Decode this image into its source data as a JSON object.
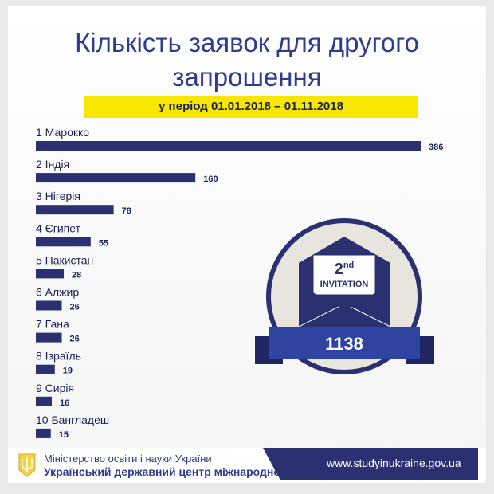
{
  "chart_data": {
    "type": "bar",
    "orientation": "horizontal",
    "title": "Кількість заявок для другого запрошення",
    "subtitle": "у період 01.01.2018 –  01.11.2018",
    "categories": [
      "1 Марокко",
      "2 Індія",
      "3 Нігерія",
      "4 Єгипет",
      "5 Пакистан",
      "6 Алжир",
      "7 Гана",
      "8 Ізраїль",
      "9 Сирія",
      "10 Бангладеш"
    ],
    "values": [
      386,
      160,
      78,
      55,
      28,
      26,
      26,
      19,
      16,
      15
    ],
    "xlim": [
      0,
      386
    ],
    "grid": false
  },
  "title_line1": "Кількість заявок для другого",
  "title_line2": "запрошення",
  "badge": {
    "ordinal": "2",
    "suffix": "nd",
    "label": "INVITATION",
    "total": "1138"
  },
  "footer": {
    "ministry": "Міністерство освіти і науки України",
    "center": "Український державний центр міжнародної освіти",
    "url": "www.studyinukraine.gov.ua"
  },
  "colors": {
    "bar": "#2b3170",
    "accent": "#f7e600",
    "title": "#2f3b8c"
  }
}
